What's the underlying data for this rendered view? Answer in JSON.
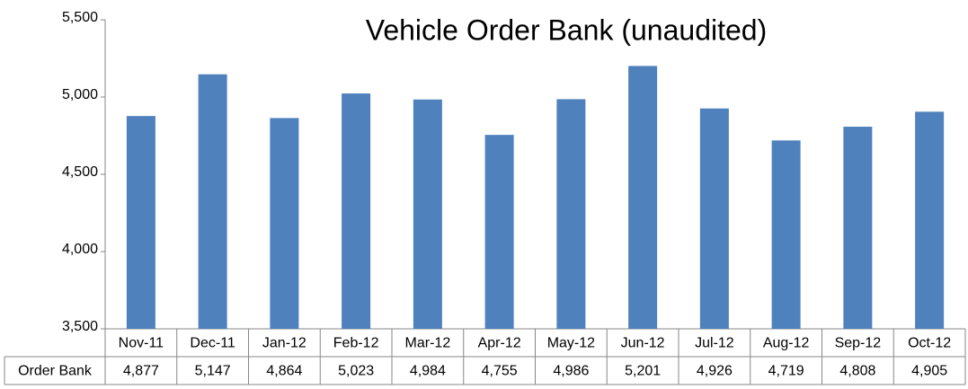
{
  "chart_data": {
    "type": "bar",
    "title": "Vehicle Order Bank (unaudited)",
    "categories": [
      "Nov-11",
      "Dec-11",
      "Jan-12",
      "Feb-12",
      "Mar-12",
      "Apr-12",
      "May-12",
      "Jun-12",
      "Jul-12",
      "Aug-12",
      "Sep-12",
      "Oct-12"
    ],
    "series": [
      {
        "name": "Order Bank",
        "color": "#4f81bd",
        "values": [
          4877,
          5147,
          4864,
          5023,
          4984,
          4755,
          4986,
          5201,
          4926,
          4719,
          4808,
          4905
        ],
        "value_labels": [
          "4,877",
          "5,147",
          "4,864",
          "5,023",
          "4,984",
          "4,755",
          "4,986",
          "5,201",
          "4,926",
          "4,719",
          "4,808",
          "4,905"
        ]
      }
    ],
    "ylim": [
      3500,
      5500
    ],
    "yticks": [
      {
        "value": 3500,
        "label": "3,500"
      },
      {
        "value": 4000,
        "label": "4,000"
      },
      {
        "value": 4500,
        "label": "4,500"
      },
      {
        "value": 5000,
        "label": "5,000"
      },
      {
        "value": 5500,
        "label": "5,500"
      }
    ],
    "grid": false
  }
}
